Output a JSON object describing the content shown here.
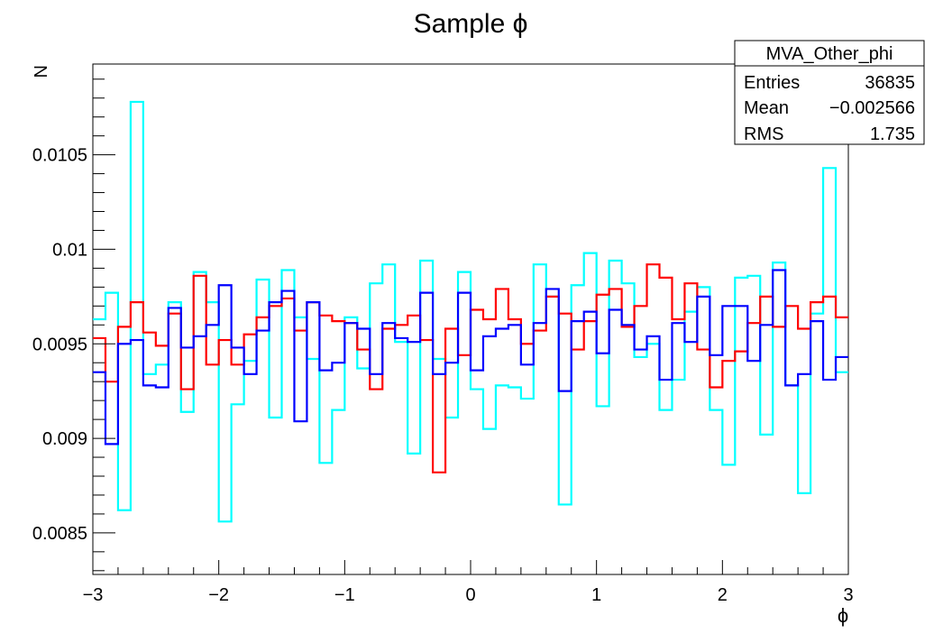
{
  "title": "Sample ϕ",
  "stats_box": {
    "name": "MVA_Other_phi",
    "rows": [
      {
        "label": "Entries",
        "value": "36835"
      },
      {
        "label": "Mean",
        "value": "−0.002566"
      },
      {
        "label": "RMS",
        "value": "1.735"
      }
    ]
  },
  "chart_data": {
    "type": "line",
    "title": "Sample ϕ",
    "xlabel": "ϕ",
    "ylabel": "N",
    "xlim": [
      -3,
      3
    ],
    "ylim": [
      0.00828,
      0.01098
    ],
    "grid": false,
    "x_ticks": [
      {
        "value": -3,
        "label": "−3"
      },
      {
        "value": -2,
        "label": "−2"
      },
      {
        "value": -1,
        "label": "−1"
      },
      {
        "value": 0,
        "label": "0"
      },
      {
        "value": 1,
        "label": "1"
      },
      {
        "value": 2,
        "label": "2"
      },
      {
        "value": 3,
        "label": "3"
      }
    ],
    "y_ticks": [
      {
        "value": 0.0085,
        "label": "0.0085"
      },
      {
        "value": 0.009,
        "label": "0.009"
      },
      {
        "value": 0.0095,
        "label": "0.0095"
      },
      {
        "value": 0.01,
        "label": "0.01"
      },
      {
        "value": 0.0105,
        "label": "0.0105"
      }
    ],
    "bin_edges": {
      "start": -3,
      "end": 3,
      "count": 60
    },
    "series": [
      {
        "color": "#00ffff",
        "values": [
          0.00963,
          0.00977,
          0.00862,
          0.01078,
          0.00934,
          0.00939,
          0.00972,
          0.00914,
          0.00988,
          0.00972,
          0.00856,
          0.00918,
          0.00941,
          0.00984,
          0.00911,
          0.00989,
          0.00964,
          0.00942,
          0.00887,
          0.00915,
          0.00964,
          0.00937,
          0.00982,
          0.00992,
          0.00951,
          0.00892,
          0.00994,
          0.00942,
          0.00911,
          0.00988,
          0.00926,
          0.00905,
          0.00928,
          0.00927,
          0.00921,
          0.00992,
          0.00975,
          0.00865,
          0.00981,
          0.00998,
          0.00917,
          0.00994,
          0.00982,
          0.00943,
          0.0095,
          0.00915,
          0.00931,
          0.00967,
          0.0098,
          0.00915,
          0.00886,
          0.00985,
          0.00986,
          0.00902,
          0.00993,
          0.00928,
          0.00871,
          0.00966,
          0.01043,
          0.00935
        ]
      },
      {
        "color": "#ff0000",
        "values": [
          0.00953,
          0.0093,
          0.00959,
          0.00972,
          0.00956,
          0.00949,
          0.00966,
          0.00926,
          0.00986,
          0.00939,
          0.00952,
          0.00939,
          0.00955,
          0.00964,
          0.0097,
          0.00974,
          0.00957,
          0.00972,
          0.00965,
          0.00962,
          0.00961,
          0.00947,
          0.00926,
          0.00958,
          0.0096,
          0.00965,
          0.00952,
          0.00882,
          0.00958,
          0.00944,
          0.00968,
          0.00963,
          0.00979,
          0.00963,
          0.0095,
          0.00957,
          0.00975,
          0.00966,
          0.00947,
          0.00962,
          0.00976,
          0.00979,
          0.00959,
          0.0097,
          0.00992,
          0.00985,
          0.00963,
          0.00982,
          0.00947,
          0.00927,
          0.00941,
          0.00946,
          0.00961,
          0.00975,
          0.00959,
          0.0097,
          0.00958,
          0.00972,
          0.00975,
          0.00964
        ]
      },
      {
        "color": "#0000ff",
        "values": [
          0.00935,
          0.00897,
          0.0095,
          0.00952,
          0.00928,
          0.00927,
          0.00969,
          0.00948,
          0.00954,
          0.0096,
          0.00981,
          0.00948,
          0.00934,
          0.00957,
          0.00972,
          0.00978,
          0.00909,
          0.00972,
          0.00936,
          0.0094,
          0.00961,
          0.00958,
          0.00934,
          0.00961,
          0.00953,
          0.00951,
          0.00977,
          0.00934,
          0.0094,
          0.00977,
          0.00936,
          0.00954,
          0.00958,
          0.0096,
          0.00939,
          0.00961,
          0.00979,
          0.00925,
          0.00962,
          0.00967,
          0.00945,
          0.00968,
          0.0096,
          0.00947,
          0.00954,
          0.00931,
          0.00961,
          0.00951,
          0.00975,
          0.00944,
          0.0097,
          0.0097,
          0.00941,
          0.0096,
          0.00989,
          0.00928,
          0.00934,
          0.00962,
          0.00931,
          0.00943
        ]
      }
    ]
  }
}
